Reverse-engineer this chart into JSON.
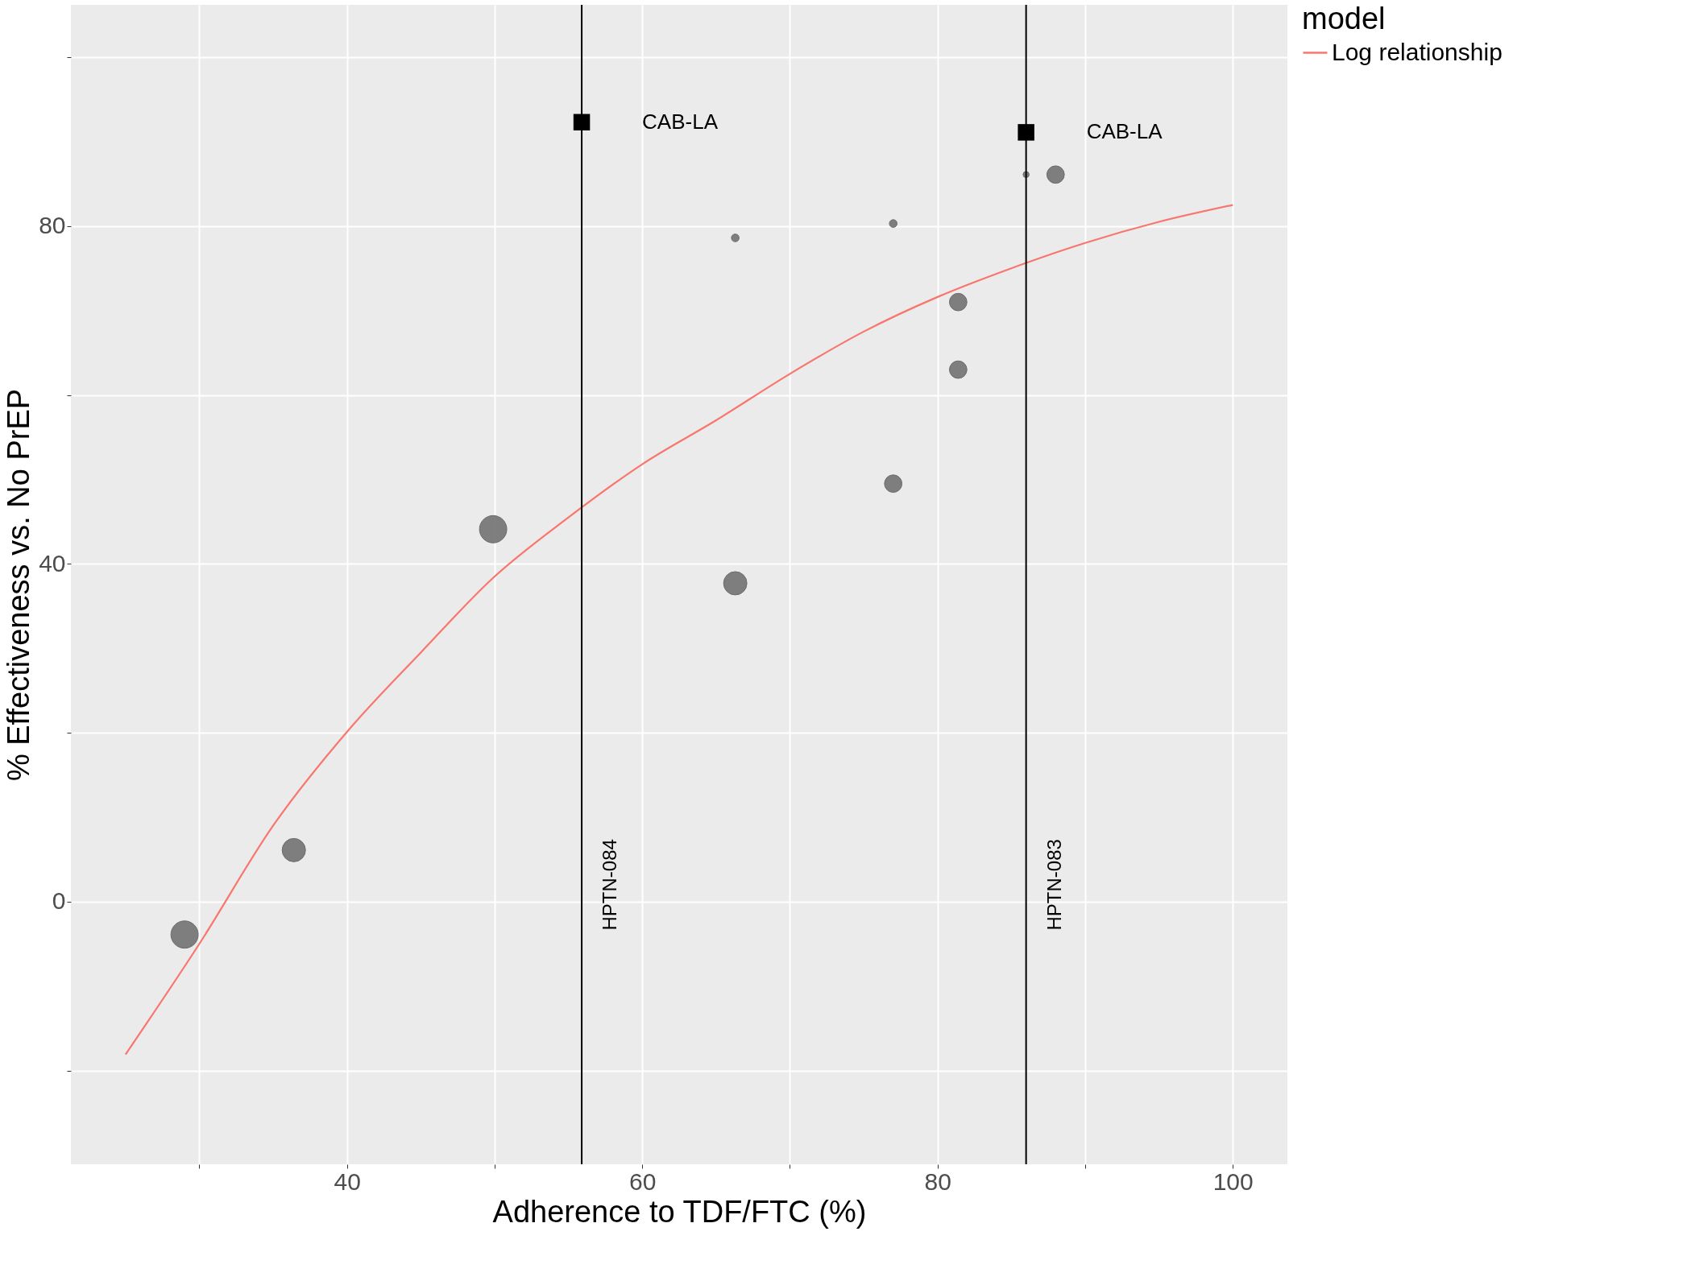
{
  "chart_data": {
    "type": "bubble",
    "xlabel": "Adherence to TDF/FTC (%)",
    "ylabel": "% Effectiveness vs. No PrEP",
    "legend_title": "model",
    "legend": "right",
    "grid": true,
    "xlim": [
      21.3,
      103.7
    ],
    "ylim": [
      -31.1,
      106.2
    ],
    "xticks": [
      {
        "value": 30,
        "label": null
      },
      40,
      {
        "value": 50,
        "label": null
      },
      60,
      {
        "value": 70,
        "label": null
      },
      80,
      {
        "value": 90,
        "label": null
      },
      100
    ],
    "yticks": [
      {
        "value": -20,
        "label": null
      },
      0,
      {
        "value": 20,
        "label": null
      },
      40,
      {
        "value": 60,
        "label": null
      },
      80,
      {
        "value": 100,
        "label": null
      }
    ],
    "series": [
      {
        "color": "#6b6b6b",
        "x": [
          29.0,
          36.4,
          49.9,
          66.3,
          66.3,
          77.0,
          77.0,
          81.4,
          81.4,
          86.0,
          88.0
        ],
        "values": [
          -3.9,
          6.1,
          44.1,
          37.7,
          78.6,
          80.3,
          49.5,
          71.0,
          63.0,
          86.1,
          86.1
        ],
        "sizes": [
          1,
          0.73,
          1,
          0.73,
          0.08,
          0.08,
          0.41,
          0.41,
          0.41,
          0.05,
          0.41
        ]
      },
      {
        "type": "line",
        "name": "Log relationship",
        "color": "#f8766d",
        "x": [
          25,
          30,
          35,
          40,
          45,
          50,
          55,
          60,
          65,
          70,
          75,
          80,
          85,
          90,
          95,
          100
        ],
        "values": [
          -18.1,
          -5,
          9,
          20.1,
          29.5,
          38.5,
          45.5,
          51.8,
          57,
          62.5,
          67.5,
          71.6,
          75,
          78,
          80.5,
          82.5
        ]
      },
      {
        "type": "scatter",
        "marker": "square",
        "color": "#000000",
        "x": [
          55.9,
          86.0
        ],
        "values": [
          92.3,
          91.1
        ]
      }
    ],
    "ref_lines": [
      {
        "axis": "x",
        "value": 55.9,
        "label": "HPTN-084",
        "color": "#000000"
      },
      {
        "axis": "x",
        "value": 86.0,
        "label": "HPTN-083",
        "color": "#000000"
      }
    ],
    "annotations": [
      {
        "text": "CAB-LA",
        "x": 55.9,
        "y": 92.3
      },
      {
        "text": "CAB-LA",
        "x": 86.0,
        "y": 91.1
      }
    ]
  }
}
